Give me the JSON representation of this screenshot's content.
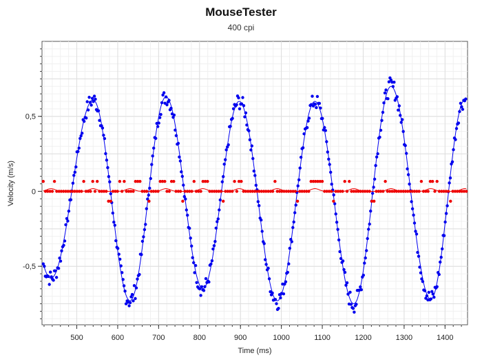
{
  "chart_data": {
    "type": "scatter",
    "title": "MouseTester",
    "subtitle": "400 cpi",
    "xlabel": "Time (ms)",
    "ylabel": "Velocity (m/s)",
    "xlim": [
      415,
      1455
    ],
    "ylim": [
      -0.89,
      1.0
    ],
    "x_ticks": [
      500,
      600,
      700,
      800,
      900,
      1000,
      1100,
      1200,
      1300,
      1400
    ],
    "x_tick_labels": [
      "500",
      "600",
      "700",
      "800",
      "900",
      "1000",
      "1100",
      "1200",
      "1300",
      "1400"
    ],
    "y_ticks": [
      0.5,
      0,
      -0.5
    ],
    "y_tick_labels": [
      "0,5",
      "0",
      "-0,5"
    ],
    "grid": true,
    "colors": {
      "x_velocity": "#0000ee",
      "y_velocity": "#ee0000"
    },
    "x_velocity_wave": {
      "start_ms": 418,
      "end_ms": 1452,
      "peaks": [
        [
          540,
          0.61
        ],
        [
          718,
          0.63
        ],
        [
          897,
          0.6
        ],
        [
          1082,
          0.6
        ],
        [
          1268,
          0.7
        ],
        [
          1448,
          0.61
        ]
      ],
      "troughs": [
        [
          437,
          -0.58
        ],
        [
          630,
          -0.73
        ],
        [
          808,
          -0.65
        ],
        [
          990,
          -0.73
        ],
        [
          1177,
          -0.75
        ],
        [
          1365,
          -0.72
        ]
      ]
    },
    "y_velocity_levels": [
      -0.066,
      0,
      0.066
    ]
  }
}
